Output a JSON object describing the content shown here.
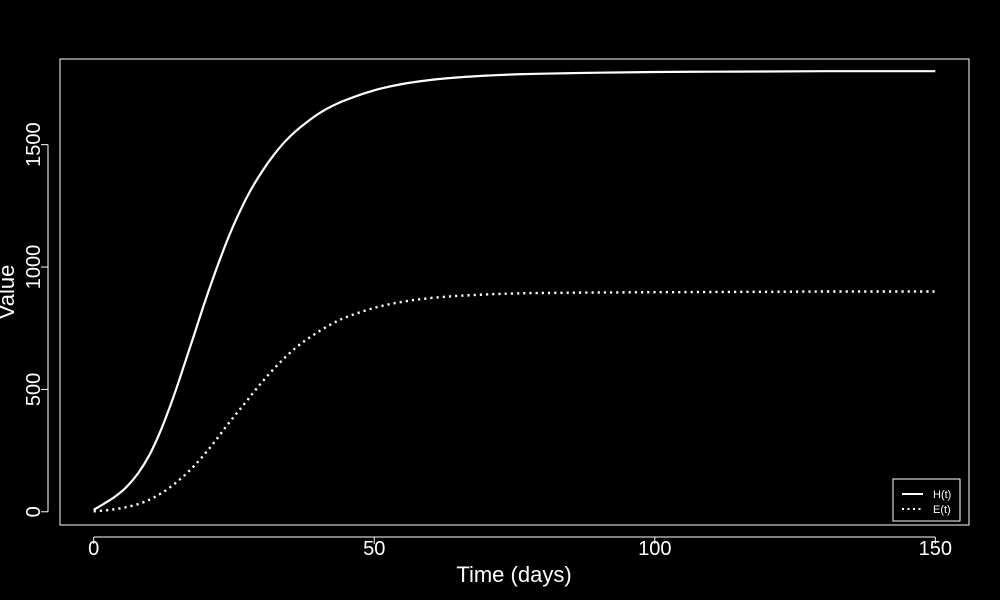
{
  "chart_data": {
    "type": "line",
    "xlabel": "Time (days)",
    "ylabel": "Value",
    "xlim": [
      -6,
      156
    ],
    "ylim": [
      -54,
      1850
    ],
    "x_ticks": [
      0,
      50,
      100,
      150
    ],
    "y_ticks": [
      0,
      500,
      1000,
      1500
    ],
    "x_tick_labels": [
      "0",
      "50",
      "100",
      "150"
    ],
    "y_tick_labels": [
      "0",
      "500",
      "1000",
      "1500"
    ],
    "grid": false,
    "legend_position": "bottom-right",
    "colors": {
      "background": "#000000",
      "foreground": "#ffffff"
    },
    "series": [
      {
        "name": "H(t)",
        "line_style": "solid",
        "x": [
          0,
          2,
          4,
          6,
          8,
          10,
          12,
          14,
          16,
          18,
          20,
          22,
          24,
          26,
          28,
          30,
          32,
          34,
          36,
          38,
          40,
          42,
          45,
          50,
          55,
          60,
          65,
          70,
          75,
          80,
          90,
          100,
          110,
          120,
          130,
          140,
          150
        ],
        "values": [
          8,
          35,
          65,
          105,
          160,
          235,
          335,
          455,
          590,
          730,
          870,
          1000,
          1120,
          1225,
          1315,
          1390,
          1455,
          1510,
          1555,
          1592,
          1625,
          1652,
          1683,
          1722,
          1748,
          1764,
          1775,
          1782,
          1787,
          1790,
          1794,
          1797,
          1798,
          1799,
          1800,
          1800,
          1800
        ]
      },
      {
        "name": "E(t)",
        "line_style": "dotted",
        "x": [
          0,
          3,
          6,
          9,
          12,
          15,
          18,
          21,
          24,
          27,
          30,
          33,
          36,
          39,
          42,
          45,
          50,
          55,
          60,
          65,
          70,
          75,
          80,
          90,
          100,
          110,
          120,
          130,
          140,
          150
        ],
        "values": [
          2,
          8,
          20,
          40,
          75,
          125,
          190,
          270,
          360,
          445,
          530,
          605,
          670,
          720,
          762,
          795,
          833,
          858,
          873,
          882,
          888,
          892,
          894,
          896,
          897,
          898,
          899,
          900,
          900,
          900
        ]
      }
    ]
  }
}
